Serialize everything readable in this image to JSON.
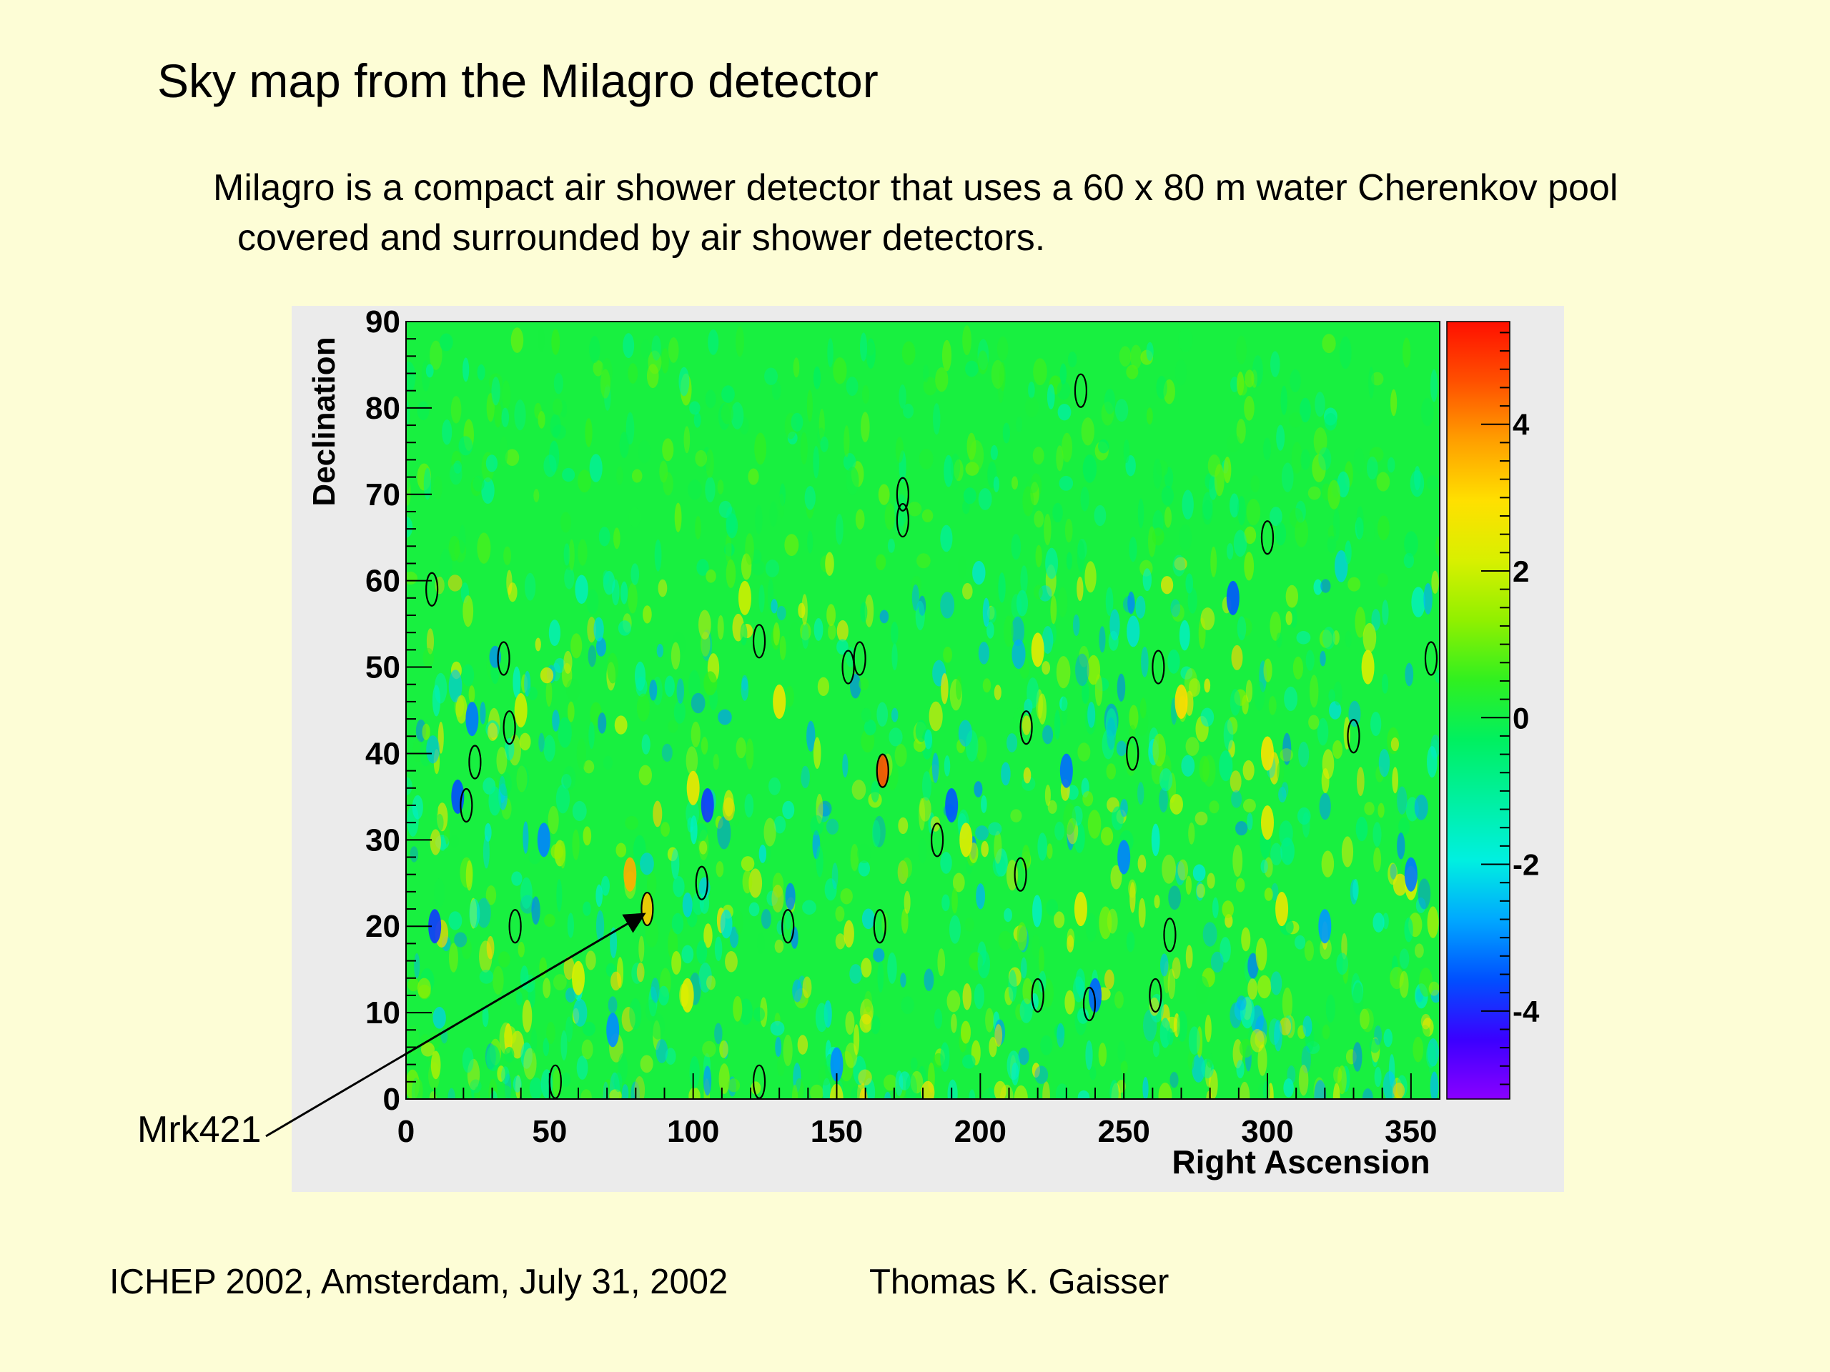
{
  "slide": {
    "title": "Sky map from the Milagro detector",
    "description_line1": "Milagro is a compact air shower detector that uses a 60 x 80 m water Cherenkov pool",
    "description_line2": "covered and surrounded by air shower detectors.",
    "footer_left": "ICHEP 2002, Amsterdam, July 31, 2002",
    "footer_right": "Thomas K. Gaisser"
  },
  "annotation": {
    "label": "Mrk421",
    "target": {
      "ra": 84,
      "dec": 22
    }
  },
  "chart_data": {
    "type": "heatmap",
    "xlabel": "Right Ascension",
    "ylabel": "Declination",
    "xlim": [
      0,
      360
    ],
    "ylim": [
      0,
      90
    ],
    "xticks": [
      0,
      50,
      100,
      150,
      200,
      250,
      300,
      350
    ],
    "yticks": [
      0,
      10,
      20,
      30,
      40,
      50,
      60,
      70,
      80,
      90
    ],
    "colorbar": {
      "range": [
        -5.2,
        5.4
      ],
      "ticks": [
        4,
        2,
        0,
        -2,
        -4
      ],
      "tick_labels": [
        "4",
        "2",
        "0",
        "-2",
        "-4"
      ],
      "colors": [
        "#8a00ff",
        "#3a00ff",
        "#0050ff",
        "#00a8ff",
        "#00f0e0",
        "#00f0a0",
        "#00f060",
        "#30f020",
        "#90f000",
        "#d8f000",
        "#ffe000",
        "#ffa000",
        "#ff5000",
        "#ff1000"
      ]
    },
    "background_level": 0.1,
    "hotspots": [
      {
        "ra": 84,
        "dec": 22,
        "value": 3.3
      },
      {
        "ra": 78,
        "dec": 26,
        "value": 3.6
      },
      {
        "ra": 166,
        "dec": 38,
        "value": 4.6
      },
      {
        "ra": 270,
        "dec": 46,
        "value": 3.0
      },
      {
        "ra": 300,
        "dec": 40,
        "value": 2.8
      },
      {
        "ra": 100,
        "dec": 36,
        "value": 2.6
      },
      {
        "ra": 130,
        "dec": 46,
        "value": 2.6
      },
      {
        "ra": 220,
        "dec": 52,
        "value": 2.4
      },
      {
        "ra": 300,
        "dec": 32,
        "value": 2.5
      },
      {
        "ra": 235,
        "dec": 22,
        "value": 2.4
      },
      {
        "ra": 305,
        "dec": 22,
        "value": 2.5
      },
      {
        "ra": 98,
        "dec": 12,
        "value": 2.3
      },
      {
        "ra": 60,
        "dec": 14,
        "value": 2.2
      },
      {
        "ra": 195,
        "dec": 30,
        "value": 2.3
      },
      {
        "ra": 350,
        "dec": 25,
        "value": 2.1
      },
      {
        "ra": 40,
        "dec": 45,
        "value": 2.0
      },
      {
        "ra": 335,
        "dec": 50,
        "value": 2.2
      },
      {
        "ra": 118,
        "dec": 58,
        "value": 2.0
      },
      {
        "ra": 10,
        "dec": 20,
        "value": -3.8
      },
      {
        "ra": 18,
        "dec": 35,
        "value": -3.6
      },
      {
        "ra": 105,
        "dec": 34,
        "value": -3.8
      },
      {
        "ra": 190,
        "dec": 34,
        "value": -3.5
      },
      {
        "ra": 230,
        "dec": 38,
        "value": -3.3
      },
      {
        "ra": 23,
        "dec": 44,
        "value": -3.2
      },
      {
        "ra": 72,
        "dec": 8,
        "value": -3.0
      },
      {
        "ra": 350,
        "dec": 26,
        "value": -3.2
      },
      {
        "ra": 288,
        "dec": 58,
        "value": -3.5
      },
      {
        "ra": 240,
        "dec": 12,
        "value": -3.4
      },
      {
        "ra": 150,
        "dec": 4,
        "value": -3.0
      },
      {
        "ra": 250,
        "dec": 28,
        "value": -3.1
      },
      {
        "ra": 320,
        "dec": 20,
        "value": -2.9
      },
      {
        "ra": 48,
        "dec": 30,
        "value": -3.1
      }
    ],
    "circled_sources": [
      {
        "ra": 9,
        "dec": 59
      },
      {
        "ra": 34,
        "dec": 51
      },
      {
        "ra": 36,
        "dec": 43
      },
      {
        "ra": 24,
        "dec": 39
      },
      {
        "ra": 21,
        "dec": 34
      },
      {
        "ra": 38,
        "dec": 20
      },
      {
        "ra": 52,
        "dec": 2
      },
      {
        "ra": 84,
        "dec": 22
      },
      {
        "ra": 103,
        "dec": 25
      },
      {
        "ra": 123,
        "dec": 53
      },
      {
        "ra": 154,
        "dec": 50
      },
      {
        "ra": 158,
        "dec": 51
      },
      {
        "ra": 166,
        "dec": 38
      },
      {
        "ra": 173,
        "dec": 70
      },
      {
        "ra": 173,
        "dec": 67
      },
      {
        "ra": 165,
        "dec": 20
      },
      {
        "ra": 133,
        "dec": 20
      },
      {
        "ra": 123,
        "dec": 2
      },
      {
        "ra": 185,
        "dec": 30
      },
      {
        "ra": 214,
        "dec": 26
      },
      {
        "ra": 216,
        "dec": 43
      },
      {
        "ra": 220,
        "dec": 12
      },
      {
        "ra": 238,
        "dec": 11
      },
      {
        "ra": 235,
        "dec": 82
      },
      {
        "ra": 253,
        "dec": 40
      },
      {
        "ra": 262,
        "dec": 50
      },
      {
        "ra": 261,
        "dec": 12
      },
      {
        "ra": 266,
        "dec": 19
      },
      {
        "ra": 300,
        "dec": 65
      },
      {
        "ra": 330,
        "dec": 42
      },
      {
        "ra": 357,
        "dec": 51
      }
    ]
  }
}
